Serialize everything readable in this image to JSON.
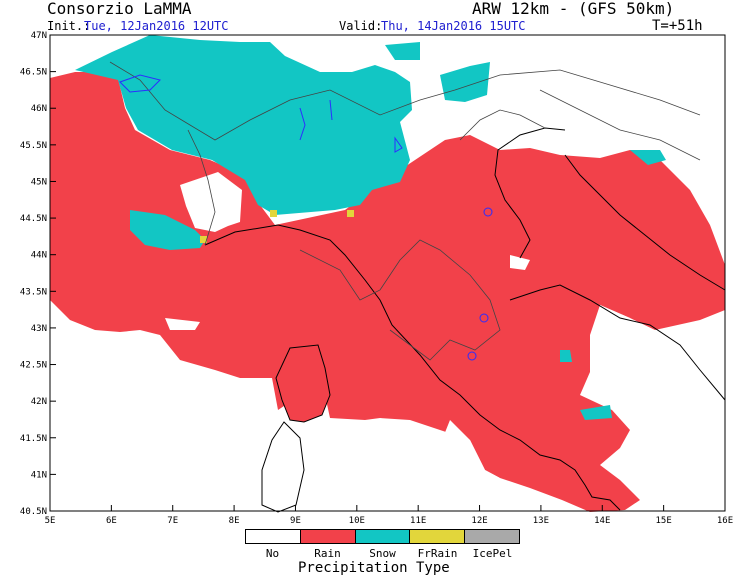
{
  "header": {
    "organization": "Consorzio LaMMA",
    "model": "ARW 12km - (GFS 50km)",
    "init_label": "Init.:",
    "init_time": "Tue, 12Jan2016 12UTC",
    "valid_label": "Valid:",
    "valid_time": "Thu, 14Jan2016 15UTC",
    "lead_time": "T=+51h"
  },
  "axes": {
    "lon_ticks": [
      "5E",
      "6E",
      "7E",
      "8E",
      "9E",
      "10E",
      "11E",
      "12E",
      "13E",
      "14E",
      "15E",
      "16E"
    ],
    "lat_ticks": [
      "47N",
      "46.5N",
      "46N",
      "45.5N",
      "45N",
      "44.5N",
      "44N",
      "43.5N",
      "43N",
      "42.5N",
      "42N",
      "41.5N",
      "41N",
      "40.5N"
    ]
  },
  "legend": {
    "title": "Precipitation Type",
    "items": [
      {
        "label": "No",
        "color": "#ffffff"
      },
      {
        "label": "Rain",
        "color": "#f2414a"
      },
      {
        "label": "Snow",
        "color": "#12c6c4"
      },
      {
        "label": "FrRain",
        "color": "#e2d63b"
      },
      {
        "label": "IcePel",
        "color": "#a9a9a9"
      }
    ]
  }
}
